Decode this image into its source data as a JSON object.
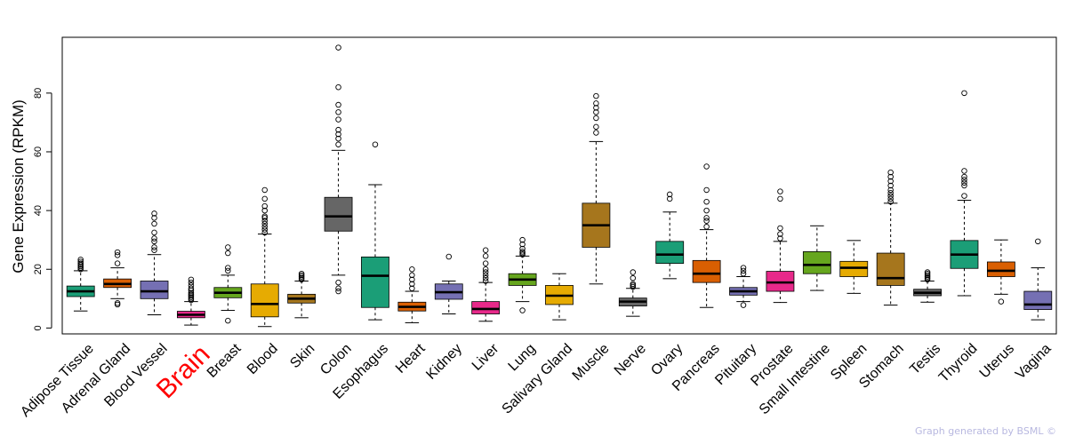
{
  "chart_data": {
    "type": "boxplot",
    "ylabel": "Gene Expression (RPKM)",
    "ylim": [
      -2,
      99
    ],
    "yticks": [
      0,
      20,
      40,
      60,
      80
    ],
    "highlight": "Brain",
    "highlight_color": "#ff0000",
    "categories": [
      {
        "label": "Adipose Tissue",
        "color": "#1b9e77",
        "min": 5.8,
        "q1": 10.7,
        "median": 12.5,
        "q3": 14.3,
        "max": 19.5,
        "outliers": [
          20.0,
          20.5,
          21.0,
          21.5,
          22.0,
          22.6,
          23.3
        ]
      },
      {
        "label": "Adrenal Gland",
        "color": "#d95f02",
        "min": 10.0,
        "q1": 13.8,
        "median": 15.0,
        "q3": 16.7,
        "max": 20.5,
        "outliers": [
          8.0,
          8.5,
          22.0,
          24.8,
          25.8
        ]
      },
      {
        "label": "Blood Vessel",
        "color": "#7570b3",
        "min": 4.5,
        "q1": 10.0,
        "median": 12.5,
        "q3": 16.0,
        "max": 25.0,
        "outliers": [
          26.5,
          27.5,
          29.5,
          30.5,
          32.5,
          35.5,
          37.5,
          39.0
        ]
      },
      {
        "label": "Brain",
        "color": "#e7298a",
        "min": 1.0,
        "q1": 3.5,
        "median": 4.5,
        "q3": 5.7,
        "max": 9.0,
        "outliers": [
          9.5,
          10.0,
          10.5,
          11.0,
          11.5,
          12.0,
          12.8,
          13.5,
          14.5,
          15.5,
          16.5
        ]
      },
      {
        "label": "Breast",
        "color": "#66a61e",
        "min": 6.0,
        "q1": 10.3,
        "median": 12.0,
        "q3": 13.8,
        "max": 18.0,
        "outliers": [
          2.5,
          19.5,
          20.5,
          25.5,
          27.5
        ]
      },
      {
        "label": "Blood",
        "color": "#e6ab02",
        "min": 0.5,
        "q1": 3.8,
        "median": 8.2,
        "q3": 15.0,
        "max": 32.0,
        "outliers": [
          32.5,
          33.5,
          34.5,
          35.5,
          36.5,
          37.5,
          38.0,
          40.0,
          41.5,
          44.0,
          47.0
        ]
      },
      {
        "label": "Skin",
        "color": "#a6761d",
        "min": 3.5,
        "q1": 8.5,
        "median": 10.0,
        "q3": 11.5,
        "max": 16.0,
        "outliers": [
          16.5,
          17.0,
          17.5,
          18.0,
          18.5
        ]
      },
      {
        "label": "Colon",
        "color": "#666666",
        "min": 18.0,
        "q1": 33.0,
        "median": 38.0,
        "q3": 44.5,
        "max": 60.5,
        "outliers": [
          12.5,
          13.5,
          15.5,
          62.5,
          64.5,
          66.0,
          67.5,
          71.0,
          73.5,
          76.0,
          82.0,
          95.5
        ]
      },
      {
        "label": "Esophagus",
        "color": "#1b9e77",
        "min": 2.8,
        "q1": 7.0,
        "median": 17.8,
        "q3": 24.2,
        "max": 48.8,
        "outliers": [
          62.5
        ]
      },
      {
        "label": "Heart",
        "color": "#d95f02",
        "min": 1.8,
        "q1": 5.8,
        "median": 7.2,
        "q3": 8.8,
        "max": 12.5,
        "outliers": [
          13.5,
          15.0,
          16.5,
          18.0,
          20.0
        ]
      },
      {
        "label": "Kidney",
        "color": "#7570b3",
        "min": 4.8,
        "q1": 9.8,
        "median": 12.2,
        "q3": 15.0,
        "max": 16.0,
        "outliers": [
          24.3
        ]
      },
      {
        "label": "Liver",
        "color": "#e7298a",
        "min": 2.3,
        "q1": 4.8,
        "median": 6.5,
        "q3": 9.0,
        "max": 15.5,
        "outliers": [
          16.0,
          17.0,
          18.0,
          19.0,
          20.0,
          22.0,
          24.5,
          26.5
        ]
      },
      {
        "label": "Lung",
        "color": "#66a61e",
        "min": 9.0,
        "q1": 14.5,
        "median": 16.5,
        "q3": 18.5,
        "max": 24.5,
        "outliers": [
          6.0,
          25.0,
          25.5,
          26.0,
          27.0,
          28.5,
          30.0
        ]
      },
      {
        "label": "Salivary Gland",
        "color": "#e6ab02",
        "min": 2.8,
        "q1": 8.0,
        "median": 11.0,
        "q3": 14.5,
        "max": 18.5,
        "outliers": []
      },
      {
        "label": "Muscle",
        "color": "#a6761d",
        "min": 15.0,
        "q1": 27.5,
        "median": 35.0,
        "q3": 42.5,
        "max": 63.5,
        "outliers": [
          66.5,
          68.5,
          71.5,
          73.5,
          75.0,
          76.5,
          79.0
        ]
      },
      {
        "label": "Nerve",
        "color": "#666666",
        "min": 4.0,
        "q1": 7.5,
        "median": 9.0,
        "q3": 10.2,
        "max": 13.5,
        "outliers": [
          14.0,
          14.5,
          15.0,
          17.0,
          19.0
        ]
      },
      {
        "label": "Ovary",
        "color": "#1b9e77",
        "min": 16.8,
        "q1": 22.0,
        "median": 25.0,
        "q3": 29.5,
        "max": 39.5,
        "outliers": [
          44.0,
          45.5
        ]
      },
      {
        "label": "Pancreas",
        "color": "#d95f02",
        "min": 7.0,
        "q1": 15.5,
        "median": 18.5,
        "q3": 23.0,
        "max": 33.5,
        "outliers": [
          34.5,
          36.5,
          37.5,
          40.0,
          43.0,
          47.0,
          55.0
        ]
      },
      {
        "label": "Pituitary",
        "color": "#7570b3",
        "min": 9.0,
        "q1": 11.2,
        "median": 12.5,
        "q3": 13.8,
        "max": 17.5,
        "outliers": [
          7.8,
          18.5,
          19.5,
          20.5
        ]
      },
      {
        "label": "Prostate",
        "color": "#e7298a",
        "min": 8.7,
        "q1": 12.5,
        "median": 15.5,
        "q3": 19.3,
        "max": 29.5,
        "outliers": [
          30.5,
          32.0,
          34.0,
          44.0,
          46.5
        ]
      },
      {
        "label": "Small Intestine",
        "color": "#66a61e",
        "min": 12.8,
        "q1": 18.5,
        "median": 21.5,
        "q3": 26.0,
        "max": 34.8,
        "outliers": []
      },
      {
        "label": "Spleen",
        "color": "#e6ab02",
        "min": 11.8,
        "q1": 17.5,
        "median": 20.5,
        "q3": 22.7,
        "max": 29.8,
        "outliers": []
      },
      {
        "label": "Stomach",
        "color": "#a6761d",
        "min": 7.8,
        "q1": 14.5,
        "median": 17.0,
        "q3": 25.5,
        "max": 42.5,
        "outliers": [
          43.0,
          44.0,
          45.0,
          46.0,
          47.0,
          48.5,
          50.0,
          51.5,
          53.0
        ]
      },
      {
        "label": "Testis",
        "color": "#666666",
        "min": 8.8,
        "q1": 11.0,
        "median": 12.0,
        "q3": 13.2,
        "max": 16.0,
        "outliers": [
          16.5,
          17.0,
          17.5,
          18.0,
          18.5,
          19.0
        ]
      },
      {
        "label": "Thyroid",
        "color": "#1b9e77",
        "min": 11.0,
        "q1": 20.3,
        "median": 25.0,
        "q3": 29.8,
        "max": 43.5,
        "outliers": [
          45.0,
          48.5,
          49.5,
          50.5,
          51.5,
          53.5,
          80.0
        ]
      },
      {
        "label": "Uterus",
        "color": "#d95f02",
        "min": 11.5,
        "q1": 17.5,
        "median": 19.5,
        "q3": 22.5,
        "max": 30.0,
        "outliers": [
          9.0
        ]
      },
      {
        "label": "Vagina",
        "color": "#7570b3",
        "min": 2.8,
        "q1": 6.3,
        "median": 8.0,
        "q3": 12.5,
        "max": 20.5,
        "outliers": [
          29.5
        ]
      }
    ]
  },
  "footer": {
    "credit": "Graph generated by BSML ©"
  }
}
